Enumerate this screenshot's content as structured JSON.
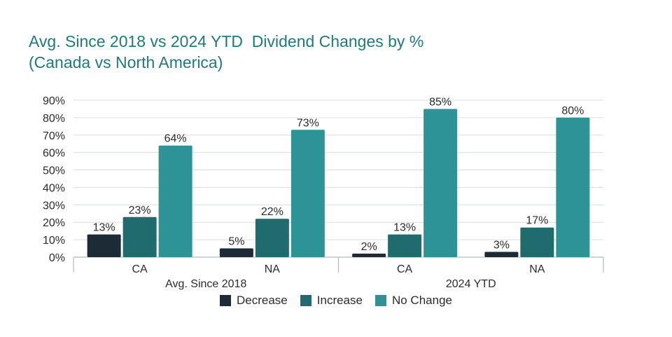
{
  "title": {
    "line1": "Avg. Since 2018 vs 2024 YTD  Dividend Changes by %",
    "line2": "(Canada vs North America)"
  },
  "colors": {
    "title": "#1f7a78",
    "grid": "#d9dde0",
    "axis": "#b5b9bd",
    "text": "#2b2b2b"
  },
  "chart_data": {
    "type": "bar",
    "title": "Avg. Since 2018 vs 2024 YTD  Dividend Changes by % (Canada vs North America)",
    "xlabel": "",
    "ylabel": "",
    "ylim": [
      0,
      90
    ],
    "yticks": [
      "0%",
      "10%",
      "20%",
      "30%",
      "40%",
      "50%",
      "60%",
      "70%",
      "80%",
      "90%"
    ],
    "grid": true,
    "legend_position": "bottom",
    "groups": [
      {
        "label": "Avg. Since 2018",
        "categories": [
          "CA",
          "NA"
        ]
      },
      {
        "label": "2024 YTD",
        "categories": [
          "CA",
          "NA"
        ]
      }
    ],
    "categories": [
      "CA",
      "NA",
      "CA",
      "NA"
    ],
    "series": [
      {
        "name": "Decrease",
        "color": "#1c2b36",
        "values": [
          13,
          5,
          2,
          3
        ],
        "labels": [
          "13%",
          "5%",
          "2%",
          "3%"
        ]
      },
      {
        "name": "Increase",
        "color": "#1f6b6d",
        "values": [
          23,
          22,
          13,
          17
        ],
        "labels": [
          "23%",
          "22%",
          "13%",
          "17%"
        ]
      },
      {
        "name": "No Change",
        "color": "#2e9396",
        "values": [
          64,
          73,
          85,
          80
        ],
        "labels": [
          "64%",
          "73%",
          "85%",
          "80%"
        ]
      }
    ]
  }
}
